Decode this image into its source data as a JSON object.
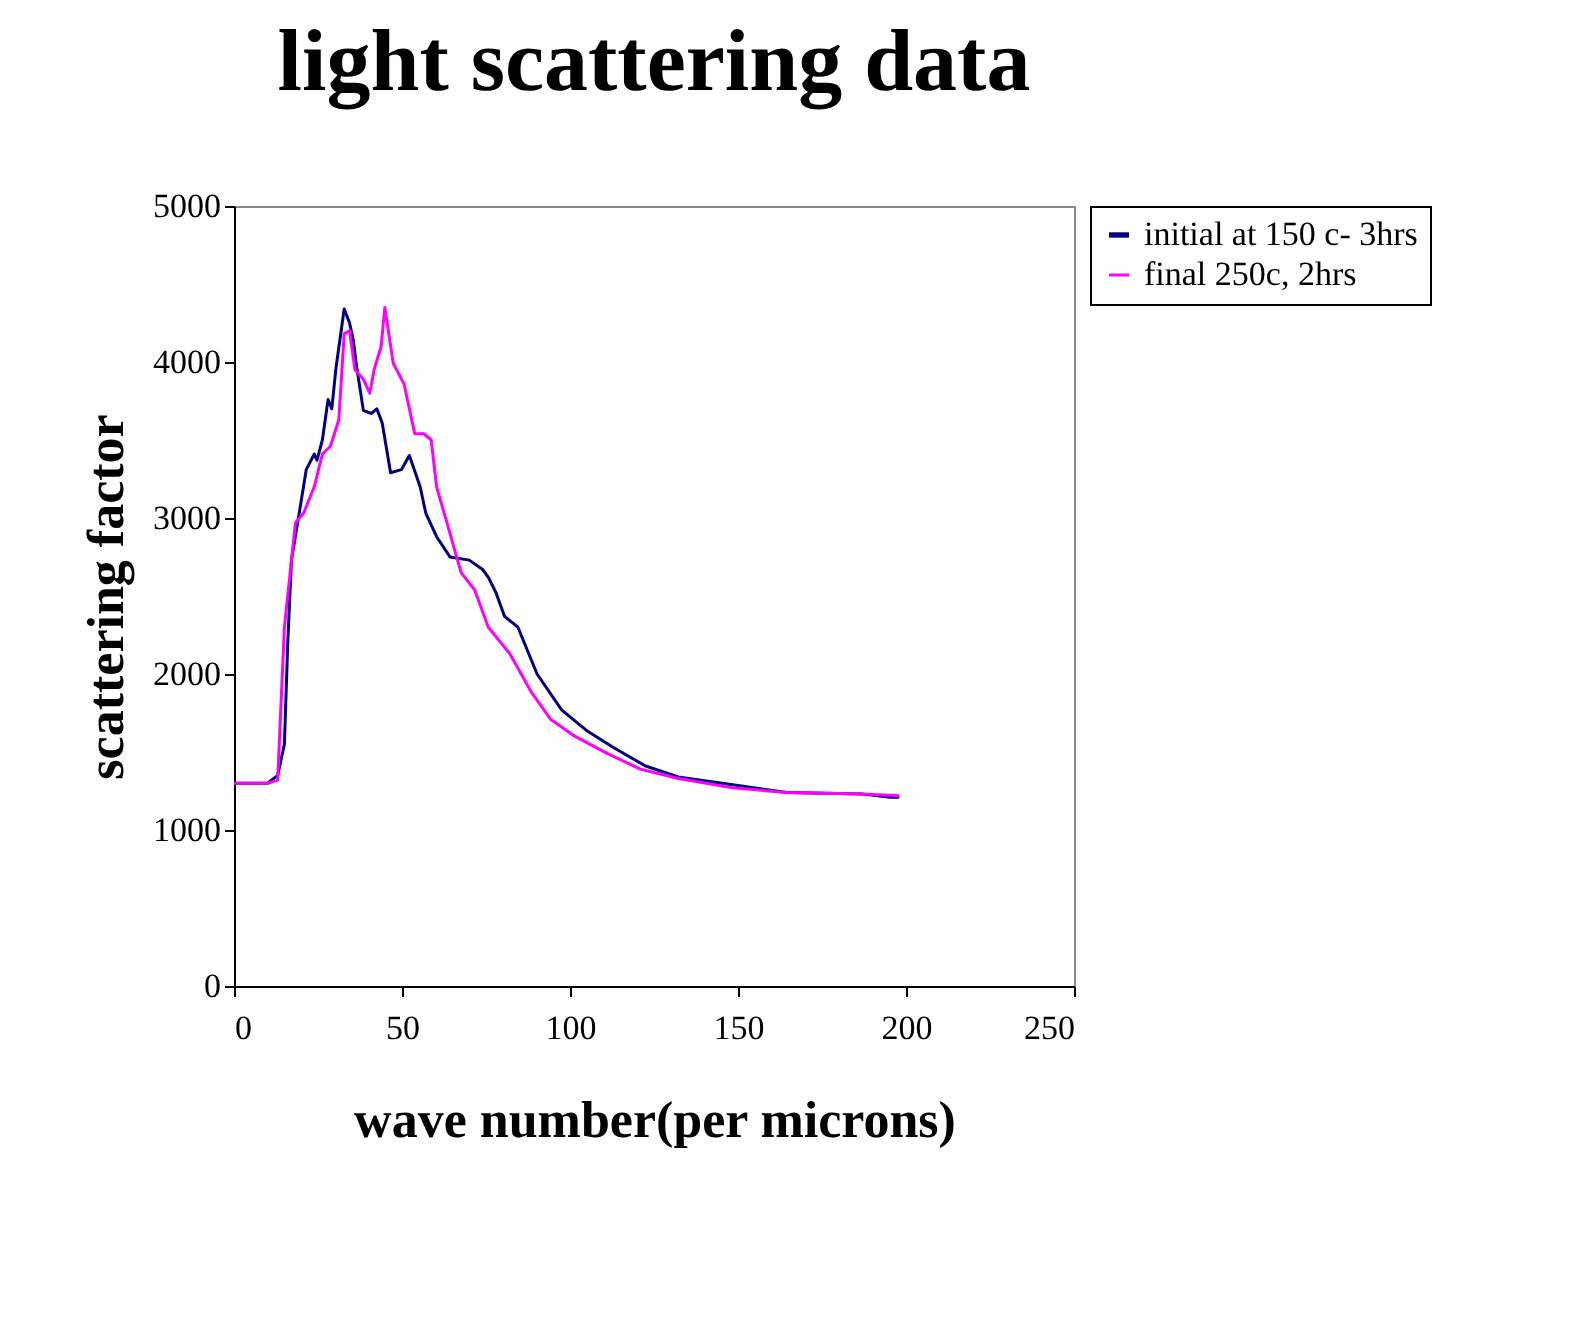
{
  "chart_data": {
    "type": "line",
    "title": "light scattering data",
    "xlabel": "wave number(per microns)",
    "ylabel": "scattering factor",
    "xlim": [
      0,
      250
    ],
    "xticks": [
      0,
      50,
      100,
      150,
      200,
      250
    ],
    "ylim": [
      0,
      5000
    ],
    "yticks": [
      0,
      1000,
      2000,
      3000,
      4000,
      5000
    ],
    "grid": false,
    "legend": "right",
    "marker": "none",
    "line_style": "solid",
    "series": [
      {
        "name": "initial at 150 c- 3hrs",
        "color": "#000080",
        "x": [
          0,
          5,
          10,
          13,
          15,
          16,
          17.1,
          19.1,
          21.5,
          23.9,
          24.7,
          26.3,
          28,
          29.1,
          30.4,
          32.8,
          34.4,
          35.5,
          36.5,
          38.5,
          40.9,
          42.5,
          44.1,
          46.6,
          49.8,
          52.2,
          55.4,
          57.1,
          60.3,
          64.3,
          70,
          74,
          75.7,
          78,
          80.5,
          84.5,
          90.2,
          97.5,
          104.8,
          112.8,
          122.5,
          132.2,
          148.4,
          164.5,
          187.2,
          195.3,
          198
        ],
        "values": [
          1300,
          1300,
          1300,
          1350,
          1550,
          2200,
          2730,
          2990,
          3310,
          3410,
          3370,
          3500,
          3760,
          3700,
          3970,
          4340,
          4250,
          4140,
          3970,
          3690,
          3670,
          3700,
          3610,
          3290,
          3310,
          3400,
          3200,
          3030,
          2880,
          2750,
          2730,
          2670,
          2620,
          2520,
          2370,
          2300,
          2000,
          1770,
          1640,
          1530,
          1410,
          1340,
          1290,
          1240,
          1230,
          1210,
          1210
        ]
      },
      {
        "name": "final 250c, 2hrs",
        "color": "#ff00ff",
        "x": [
          0,
          5,
          10,
          13,
          15,
          18.3,
          20.7,
          23.9,
          26.3,
          28.7,
          31.2,
          32.8,
          34.4,
          36,
          38.5,
          40.4,
          41.7,
          43.8,
          44.9,
          47.4,
          50.6,
          53.8,
          56.5,
          58.7,
          60.3,
          64.3,
          67.6,
          71.6,
          75.7,
          82.1,
          88.6,
          94.2,
          101.5,
          111.2,
          120.9,
          132.2,
          148.4,
          164.5,
          187.2,
          198
        ],
        "values": [
          1300,
          1300,
          1300,
          1320,
          2300,
          2970,
          3030,
          3200,
          3410,
          3460,
          3630,
          4180,
          4200,
          3950,
          3890,
          3800,
          3950,
          4100,
          4350,
          3990,
          3860,
          3540,
          3540,
          3500,
          3200,
          2900,
          2650,
          2540,
          2300,
          2130,
          1880,
          1710,
          1600,
          1490,
          1390,
          1330,
          1270,
          1240,
          1230,
          1220
        ]
      }
    ]
  }
}
